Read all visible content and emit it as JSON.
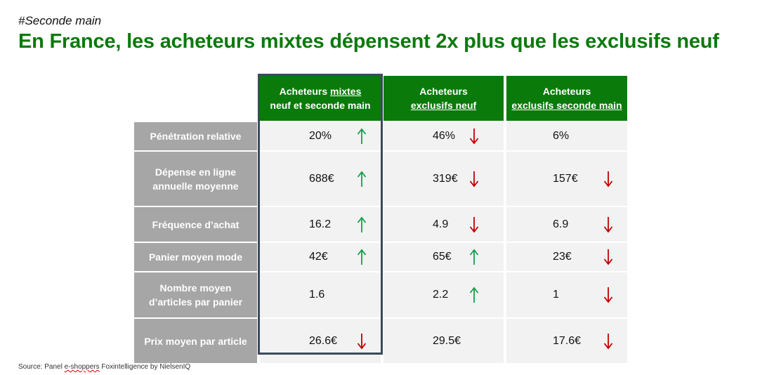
{
  "tag": "#Seconde main",
  "title": "En France, les acheteurs mixtes dépensent 2x plus que les exclusifs neuf",
  "colors": {
    "green_header": "#0a7a0a",
    "up": "#14a04a",
    "down": "#c00000",
    "highlight_border": "#3b4a5c"
  },
  "columns": [
    {
      "pre": "Acheteurs ",
      "under": "mixtes",
      "line2": "neuf et seconde main"
    },
    {
      "pre": "Acheteurs",
      "under": "exclusifs neuf",
      "line2": ""
    },
    {
      "pre": "Acheteurs",
      "under": "exclusifs seconde main",
      "line2": ""
    }
  ],
  "rows": [
    {
      "label": "Pénétration relative",
      "cells": [
        {
          "v": "20%",
          "a": "up"
        },
        {
          "v": "46%",
          "a": "down"
        },
        {
          "v": "6%",
          "a": ""
        }
      ]
    },
    {
      "label": "Dépense en ligne annuelle moyenne",
      "cells": [
        {
          "v": "688€",
          "a": "up"
        },
        {
          "v": "319€",
          "a": "down"
        },
        {
          "v": "157€",
          "a": "down"
        }
      ]
    },
    {
      "label": "Fréquence d’achat",
      "cells": [
        {
          "v": "16.2",
          "a": "up"
        },
        {
          "v": "4.9",
          "a": "down"
        },
        {
          "v": "6.9",
          "a": "down"
        }
      ]
    },
    {
      "label": "Panier moyen mode",
      "cells": [
        {
          "v": "42€",
          "a": "up"
        },
        {
          "v": "65€",
          "a": "up"
        },
        {
          "v": "23€",
          "a": "down"
        }
      ]
    },
    {
      "label": "Nombre moyen d’articles par panier",
      "cells": [
        {
          "v": "1.6",
          "a": ""
        },
        {
          "v": "2.2",
          "a": "up"
        },
        {
          "v": "1",
          "a": "down"
        }
      ]
    },
    {
      "label": "Prix moyen par article",
      "cells": [
        {
          "v": "26.6€",
          "a": "down"
        },
        {
          "v": "29.5€",
          "a": ""
        },
        {
          "v": "17.6€",
          "a": "down"
        }
      ]
    }
  ],
  "source": {
    "prefix": "Source: Panel ",
    "word": "e-shoppers",
    "suffix": " Foxintelligence by NielsenIQ"
  }
}
